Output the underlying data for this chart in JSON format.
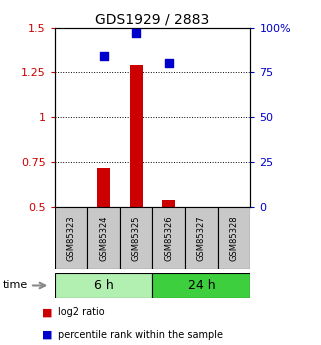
{
  "title": "GDS1929 / 2883",
  "samples": [
    "GSM85323",
    "GSM85324",
    "GSM85325",
    "GSM85326",
    "GSM85327",
    "GSM85328"
  ],
  "log2_ratio": [
    null,
    0.72,
    1.29,
    0.54,
    null,
    null
  ],
  "percentile_rank": [
    null,
    84,
    97,
    80,
    null,
    null
  ],
  "groups": [
    {
      "label": "6 h",
      "indices": [
        0,
        1,
        2
      ]
    },
    {
      "label": "24 h",
      "indices": [
        3,
        4,
        5
      ]
    }
  ],
  "group_colors": [
    "#b2f0b2",
    "#3ecf3e"
  ],
  "ylim_left": [
    0.5,
    1.5
  ],
  "ylim_right": [
    0,
    100
  ],
  "yticks_left": [
    0.5,
    0.75,
    1.0,
    1.25,
    1.5
  ],
  "yticks_right": [
    0,
    25,
    50,
    75,
    100
  ],
  "ytick_labels_left": [
    "0.5",
    "0.75",
    "1",
    "1.25",
    "1.5"
  ],
  "ytick_labels_right": [
    "0",
    "25",
    "50",
    "75",
    "100%"
  ],
  "bar_color": "#cc0000",
  "dot_color": "#0000cc",
  "bar_width": 0.4,
  "dot_size": 35,
  "background_color": "#ffffff",
  "sample_box_color": "#c8c8c8",
  "legend_log2": "log2 ratio",
  "legend_pct": "percentile rank within the sample",
  "time_label": "time",
  "left_axis_color": "#cc0000",
  "right_axis_color": "#0000cc",
  "title_fontsize": 10,
  "tick_fontsize": 8,
  "sample_fontsize": 6,
  "group_fontsize": 9,
  "legend_fontsize": 7
}
